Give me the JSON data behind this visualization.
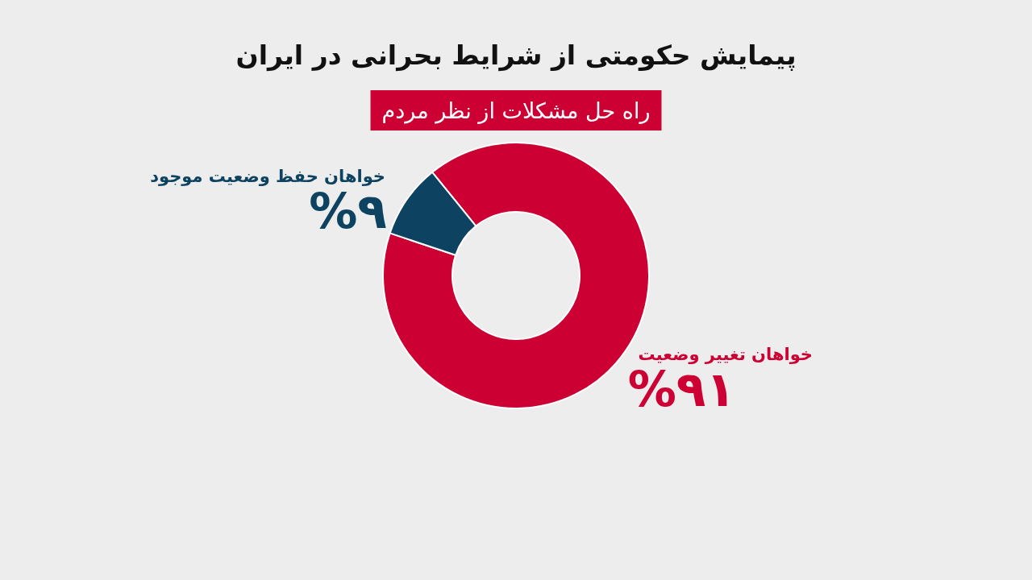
{
  "chart_data": {
    "type": "donut",
    "title": "پیمایش حکومتی از شرایط بحرانی در ایران",
    "subtitle": "راه حل مشکلات از نظر مردم",
    "categories": [
      "خواهان تغییر وضعیت",
      "خواهان حفظ وضعیت موجود"
    ],
    "values": [
      91,
      9
    ],
    "colors": [
      "#cc0033",
      "#0d4260"
    ],
    "value_labels": [
      "%۹۱",
      "%۹"
    ]
  }
}
